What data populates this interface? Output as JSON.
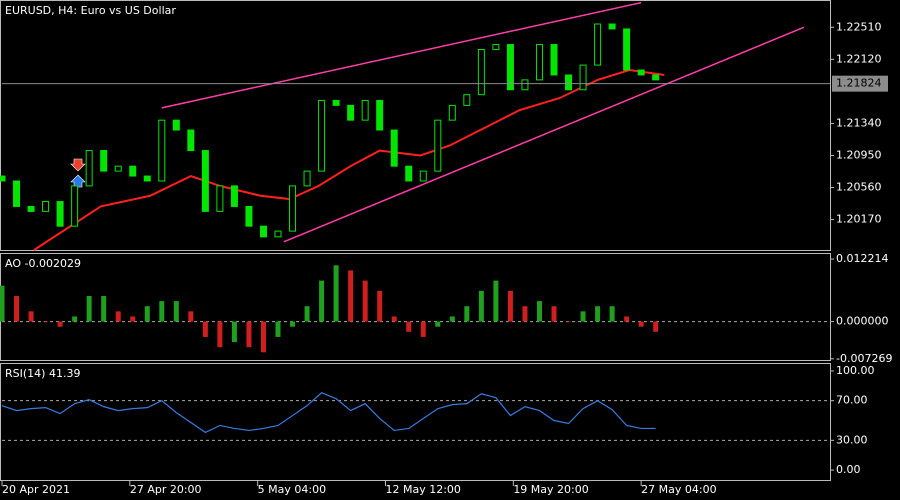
{
  "chart_data": [
    {
      "type": "candlestick",
      "title": "EURUSD, H4:  Euro vs US Dollar",
      "x": [
        0,
        5,
        10,
        15,
        20,
        25,
        30,
        35,
        40,
        45,
        50,
        55,
        60,
        65,
        70,
        75,
        80,
        85,
        90,
        95,
        100,
        105,
        110,
        115,
        120,
        125,
        130,
        135,
        140,
        145,
        150,
        155,
        160,
        165,
        170,
        175,
        180,
        185,
        190,
        195,
        200,
        205,
        210,
        215,
        220,
        225
      ],
      "open": [
        1.207,
        1.2064,
        1.2033,
        1.2027,
        1.2039,
        1.2009,
        1.2058,
        1.2101,
        1.2076,
        1.2082,
        1.207,
        1.2064,
        1.2138,
        1.2126,
        1.2101,
        1.2027,
        1.2058,
        1.2033,
        1.2009,
        1.1996,
        1.2003,
        1.2058,
        1.2076,
        1.2162,
        1.2156,
        1.2138,
        1.2162,
        1.2126,
        1.2082,
        1.2064,
        1.2076,
        1.2138,
        1.2156,
        1.2169,
        1.2224,
        1.223,
        1.2175,
        1.2187,
        1.223,
        1.2193,
        1.2175,
        1.2205,
        1.2255,
        1.2249,
        1.2199,
        1.2193
      ],
      "close": [
        1.2064,
        1.2033,
        1.2027,
        1.2039,
        1.2009,
        1.2058,
        1.2101,
        1.2076,
        1.2082,
        1.207,
        1.2064,
        1.2138,
        1.2126,
        1.2101,
        1.2027,
        1.2058,
        1.2033,
        1.2009,
        1.1996,
        1.2003,
        1.2058,
        1.2076,
        1.2162,
        1.2156,
        1.2138,
        1.2162,
        1.2126,
        1.2082,
        1.2064,
        1.2076,
        1.2138,
        1.2156,
        1.2169,
        1.2224,
        1.223,
        1.2175,
        1.2187,
        1.223,
        1.2193,
        1.2175,
        1.2205,
        1.2255,
        1.2249,
        1.2199,
        1.2193,
        1.2187
      ],
      "color": "#00e600",
      "xlim": [
        0,
        285
      ],
      "xticks": [
        {
          "value": 0,
          "label": "20 Apr 2021"
        },
        {
          "value": 44,
          "label": "27 Apr 20:00"
        },
        {
          "value": 88,
          "label": "5 May 04:00"
        },
        {
          "value": 132,
          "label": "12 May 12:00"
        },
        {
          "value": 176,
          "label": "19 May 20:00"
        },
        {
          "value": 220,
          "label": "27 May 04:00"
        }
      ],
      "ylim": [
        1.198,
        1.2283
      ],
      "yticks": [
        {
          "value": 1.2251,
          "label": "1.22510"
        },
        {
          "value": 1.2212,
          "label": "1.22120"
        },
        {
          "value": 1.2134,
          "label": "1.21340"
        },
        {
          "value": 1.2095,
          "label": "1.20950"
        },
        {
          "value": 1.2056,
          "label": "1.20560"
        },
        {
          "value": 1.2017,
          "label": "1.20170"
        }
      ],
      "current_price": 1.21824,
      "lines": [
        {
          "color": "#ff2020",
          "x": [
            11,
            34,
            51,
            65,
            75,
            89,
            99,
            109,
            120,
            130,
            144,
            154,
            168,
            178,
            192,
            205,
            216,
            228
          ],
          "values": [
            1.198,
            1.2033,
            1.2046,
            1.207,
            1.2058,
            1.2046,
            1.2042,
            1.2058,
            1.2082,
            1.2101,
            1.2095,
            1.2107,
            1.2132,
            1.215,
            1.2165,
            1.2187,
            1.2199,
            1.2193
          ]
        },
        {
          "color": "#ff3fa8",
          "x": [
            55,
            220
          ],
          "values": [
            1.2153,
            1.2281
          ]
        },
        {
          "color": "#ff3fa8",
          "x": [
            97,
            276
          ],
          "values": [
            1.199,
            1.2251
          ]
        }
      ]
    },
    {
      "type": "bar",
      "title": "AO -0.002029",
      "x": [
        0,
        5,
        10,
        15,
        20,
        25,
        30,
        35,
        40,
        45,
        50,
        55,
        60,
        65,
        70,
        75,
        80,
        85,
        90,
        95,
        100,
        105,
        110,
        115,
        120,
        125,
        130,
        135,
        140,
        145,
        150,
        155,
        160,
        165,
        170,
        175,
        180,
        185,
        190,
        195,
        200,
        205,
        210,
        215,
        220,
        225
      ],
      "values": [
        0.007,
        0.005,
        0.002,
        0,
        -0.001,
        0.001,
        0.005,
        0.005,
        0.002,
        0.001,
        0.003,
        0.004,
        0.004,
        0.002,
        -0.003,
        -0.005,
        -0.004,
        -0.005,
        -0.006,
        -0.003,
        -0.001,
        0.003,
        0.008,
        0.011,
        0.01,
        0.008,
        0.006,
        0.001,
        -0.002,
        -0.003,
        -0.001,
        0.001,
        0.003,
        0.006,
        0.008,
        0.006,
        0.003,
        0.004,
        0.003,
        0,
        0.002,
        0.003,
        0.003,
        0.001,
        -0.001,
        -0.002
      ],
      "up_color": "#1fa01f",
      "down_color": "#d01f1f",
      "ylim": [
        -0.0077,
        0.0132
      ],
      "yticks": [
        {
          "value": 0.012214,
          "label": "0.012214"
        },
        {
          "value": 0,
          "label": "0.000000"
        },
        {
          "value": -0.007269,
          "label": "-0.007269"
        }
      ],
      "levels": [
        0
      ]
    },
    {
      "type": "line",
      "title": "RSI(14) 41.39",
      "x": [
        0,
        5,
        10,
        15,
        20,
        25,
        30,
        35,
        40,
        45,
        50,
        55,
        60,
        65,
        70,
        75,
        80,
        85,
        90,
        95,
        100,
        105,
        110,
        115,
        120,
        125,
        130,
        135,
        140,
        145,
        150,
        155,
        160,
        165,
        170,
        175,
        180,
        185,
        190,
        195,
        200,
        205,
        210,
        215,
        220,
        225
      ],
      "values": [
        65,
        60,
        62,
        63,
        57,
        67,
        71,
        64,
        60,
        62,
        63,
        70,
        58,
        48,
        38,
        45,
        42,
        40,
        42,
        45,
        55,
        65,
        78,
        72,
        60,
        67,
        52,
        40,
        42,
        52,
        62,
        66,
        67,
        77,
        73,
        55,
        64,
        60,
        50,
        47,
        62,
        70,
        61,
        45,
        42,
        42
      ],
      "color": "#3a7be0",
      "ylim": [
        -11,
        107
      ],
      "yticks": [
        {
          "value": 100,
          "label": "100.00"
        },
        {
          "value": 70,
          "label": "70.00"
        },
        {
          "value": 30,
          "label": "30.00"
        },
        {
          "value": 0,
          "label": "0.00"
        }
      ],
      "levels": [
        30,
        70
      ]
    }
  ]
}
